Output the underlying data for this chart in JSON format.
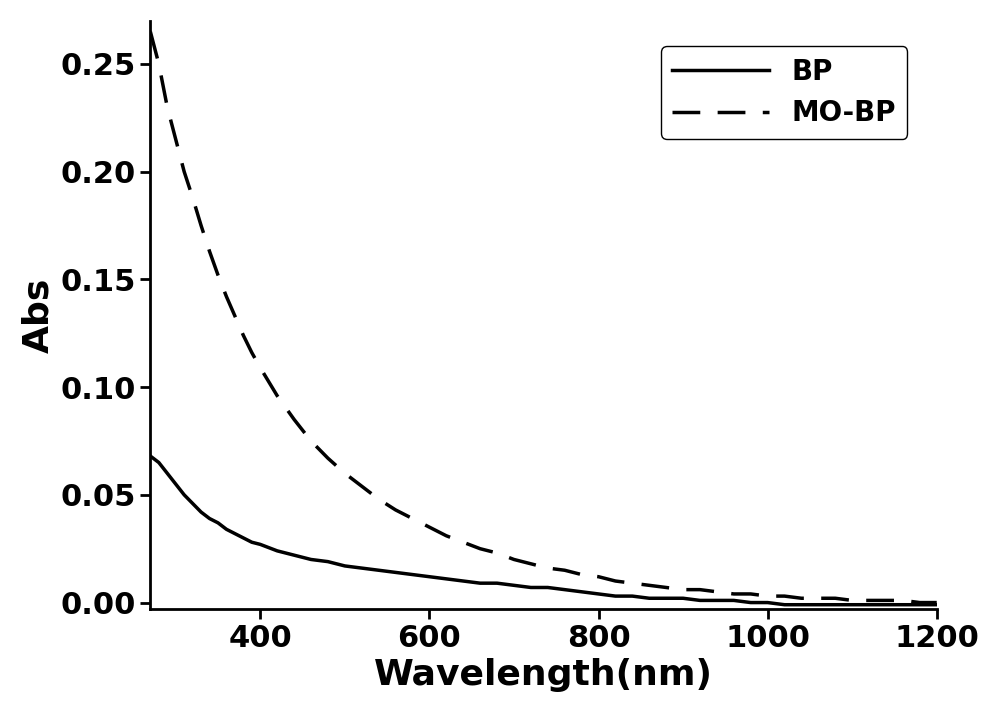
{
  "title": "",
  "xlabel": "Wavelength(nm)",
  "ylabel": "Abs",
  "xlim": [
    270,
    1200
  ],
  "ylim": [
    -0.003,
    0.27
  ],
  "yticks": [
    0.0,
    0.05,
    0.1,
    0.15,
    0.2,
    0.25
  ],
  "xticks": [
    400,
    600,
    800,
    1000,
    1200
  ],
  "bp_color": "#000000",
  "mobp_color": "#000000",
  "background_color": "#ffffff",
  "legend_labels": [
    "BP",
    "MO-BP"
  ],
  "xlabel_fontsize": 26,
  "ylabel_fontsize": 26,
  "tick_fontsize": 22,
  "legend_fontsize": 20,
  "line_width": 2.5,
  "bp_x": [
    270,
    280,
    290,
    300,
    310,
    320,
    330,
    340,
    350,
    360,
    370,
    380,
    390,
    400,
    420,
    440,
    460,
    480,
    500,
    520,
    540,
    560,
    580,
    600,
    620,
    640,
    660,
    680,
    700,
    720,
    740,
    760,
    780,
    800,
    820,
    840,
    860,
    880,
    900,
    920,
    940,
    960,
    980,
    1000,
    1020,
    1040,
    1060,
    1080,
    1100,
    1120,
    1140,
    1160,
    1180,
    1200
  ],
  "bp_y": [
    0.068,
    0.065,
    0.06,
    0.055,
    0.05,
    0.046,
    0.042,
    0.039,
    0.037,
    0.034,
    0.032,
    0.03,
    0.028,
    0.027,
    0.024,
    0.022,
    0.02,
    0.019,
    0.017,
    0.016,
    0.015,
    0.014,
    0.013,
    0.012,
    0.011,
    0.01,
    0.009,
    0.009,
    0.008,
    0.007,
    0.007,
    0.006,
    0.005,
    0.004,
    0.003,
    0.003,
    0.002,
    0.002,
    0.002,
    0.001,
    0.001,
    0.001,
    0.0,
    0.0,
    -0.001,
    -0.001,
    -0.001,
    -0.001,
    -0.001,
    -0.001,
    -0.001,
    -0.001,
    -0.001,
    -0.001
  ],
  "mobp_x": [
    270,
    280,
    290,
    300,
    310,
    320,
    330,
    340,
    350,
    360,
    370,
    380,
    390,
    400,
    420,
    440,
    460,
    480,
    500,
    520,
    540,
    560,
    580,
    600,
    620,
    640,
    660,
    680,
    700,
    720,
    740,
    760,
    780,
    800,
    820,
    840,
    860,
    880,
    900,
    920,
    940,
    960,
    980,
    1000,
    1020,
    1040,
    1060,
    1080,
    1100,
    1120,
    1140,
    1160,
    1180,
    1200
  ],
  "mobp_y": [
    0.265,
    0.25,
    0.23,
    0.215,
    0.2,
    0.188,
    0.175,
    0.163,
    0.152,
    0.142,
    0.133,
    0.124,
    0.116,
    0.109,
    0.096,
    0.085,
    0.075,
    0.067,
    0.06,
    0.054,
    0.048,
    0.043,
    0.039,
    0.035,
    0.031,
    0.028,
    0.025,
    0.023,
    0.02,
    0.018,
    0.016,
    0.015,
    0.013,
    0.012,
    0.01,
    0.009,
    0.008,
    0.007,
    0.006,
    0.006,
    0.005,
    0.004,
    0.004,
    0.003,
    0.003,
    0.002,
    0.002,
    0.002,
    0.001,
    0.001,
    0.001,
    0.001,
    0.0,
    0.0
  ]
}
